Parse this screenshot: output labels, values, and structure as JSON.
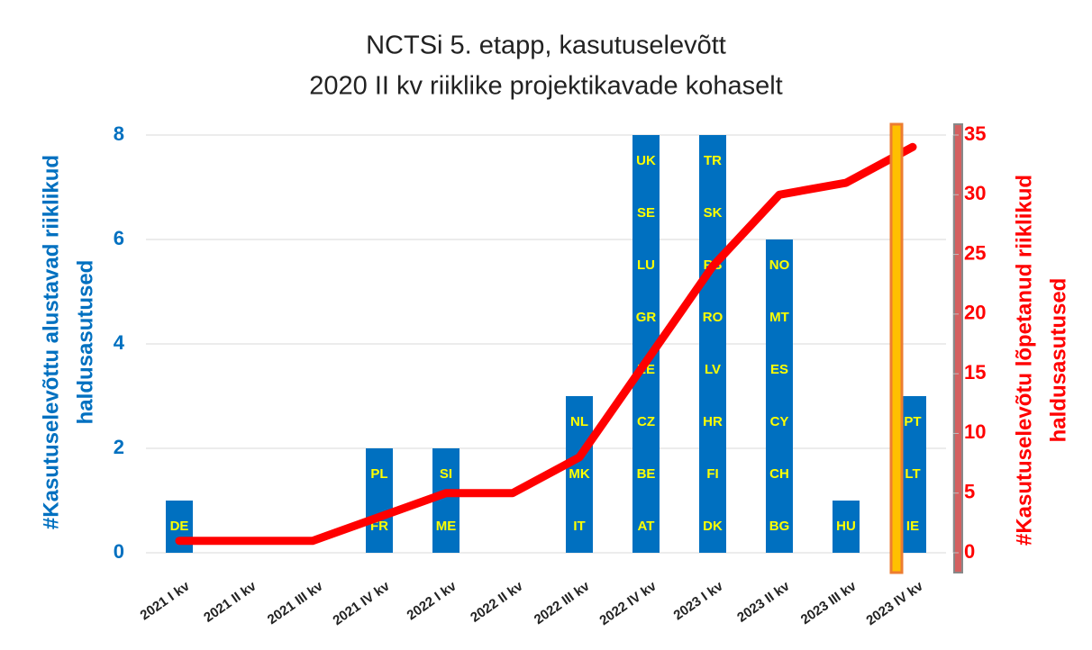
{
  "chart_data": {
    "type": "bar",
    "title": [
      "NCTSi 5. etapp, kasutuselevõtt",
      "2020 II kv riiklike projektikavade kohaselt"
    ],
    "y_label": [
      "#Kasutuselevõttu  alustavad riiklikud",
      "haldusasutused"
    ],
    "y2_label": [
      "#Kasutuselevõtu  lõpetanud riiklikud",
      "haldusasutused"
    ],
    "categories": [
      "2021 I kv",
      "2021 II kv",
      "2021 III kv",
      "2021 IV kv",
      "2022 I kv",
      "2022 II kv",
      "2022 III kv",
      "2022 IV kv",
      "2023 I kv",
      "2023 II kv",
      "2023 III kv",
      "2023 IV kv"
    ],
    "series": [
      {
        "type": "bar",
        "color": "#0070c0",
        "values": [
          1,
          0,
          0,
          2,
          2,
          0,
          3,
          8,
          8,
          6,
          1,
          3
        ]
      },
      {
        "type": "line",
        "axis": "y2",
        "color": "#ff0000",
        "values": [
          1,
          1,
          1,
          3,
          5,
          5,
          8,
          16,
          24,
          30,
          31,
          34
        ]
      }
    ],
    "bar_labels": [
      [
        "DE"
      ],
      [],
      [],
      [
        "FR",
        "PL"
      ],
      [
        "ME",
        "SI"
      ],
      [],
      [
        "IT",
        "MK",
        "NL"
      ],
      [
        "AT",
        "BE",
        "CZ",
        "EE",
        "GR",
        "LU",
        "SE",
        "UK"
      ],
      [
        "DK",
        "FI",
        "HR",
        "LV",
        "RO",
        "RS",
        "SK",
        "TR"
      ],
      [
        "BG",
        "CH",
        "CY",
        "ES",
        "MT",
        "NO"
      ],
      [
        "HU"
      ],
      [
        "IE",
        "LT",
        "PT"
      ]
    ],
    "bar_label_color": "#ffff00",
    "ylim": [
      0,
      8
    ],
    "yticks": [
      0,
      2,
      4,
      6,
      8
    ],
    "y2lim": [
      0,
      35
    ],
    "y2ticks": [
      0,
      5,
      10,
      15,
      20,
      25,
      30,
      35
    ],
    "grid": true
  }
}
